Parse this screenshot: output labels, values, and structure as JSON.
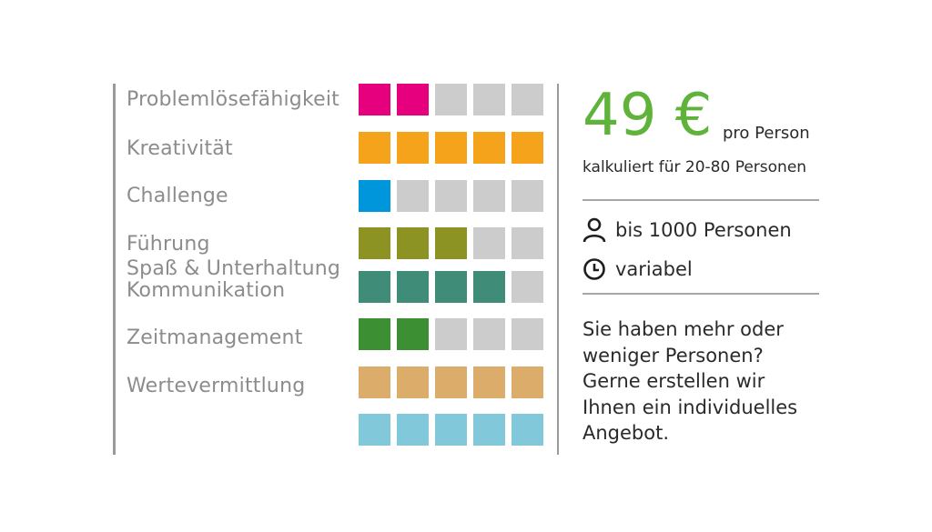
{
  "categories": [
    {
      "label": "Problemlösefähigkeit",
      "filled": 2,
      "color": "#e6007e"
    },
    {
      "label": "Kreativität",
      "filled": 5,
      "color": "#f5a31a"
    },
    {
      "label": "Challenge",
      "filled": 1,
      "color": "#0096dc"
    },
    {
      "label": "Führung",
      "filled": 3,
      "color": "#8c9322"
    },
    {
      "label": "Spaß & Unterhaltung",
      "filled": 4,
      "color": "#3f8c79"
    },
    {
      "label": "Kommunikation",
      "filled": 4,
      "color": "#3f8c79"
    },
    {
      "label": "Zeitmanagement",
      "filled": 2,
      "color": "#3c8f32"
    },
    {
      "label": "Wertevermittlung",
      "filled": 5,
      "color": "#dcad6a"
    },
    {
      "label": "",
      "filled": 5,
      "color": "#82c8db"
    }
  ],
  "empty_color": "#cccccc",
  "price": {
    "value": "49 €",
    "unit": "pro Person",
    "calc": "kalkuliert für 20-80 Personen",
    "accent": "#5fb33b"
  },
  "info": {
    "persons_icon": "person-icon",
    "persons": "bis 1000 Personen",
    "duration_icon": "clock-icon",
    "duration": "variabel"
  },
  "note": {
    "line1": "Sie haben mehr oder",
    "line2": "weniger Personen?",
    "line3": "Gerne erstellen wir",
    "line4": "Ihnen ein individuelles",
    "line5": "Angebot."
  }
}
